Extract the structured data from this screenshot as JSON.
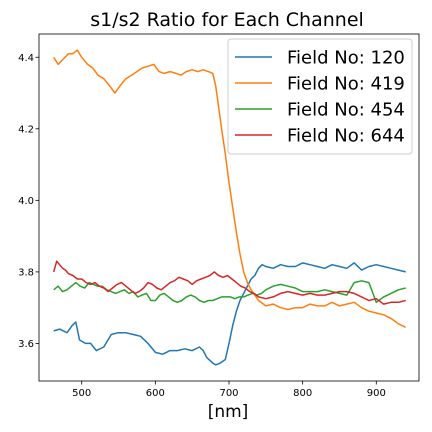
{
  "chart_data": {
    "type": "line",
    "title": "s1/s2 Ratio for Each Channel",
    "xlabel": "[nm]",
    "ylabel": "",
    "xlim": [
      442,
      958
    ],
    "ylim": [
      3.495,
      4.465
    ],
    "xticks": [
      500,
      600,
      700,
      800,
      900
    ],
    "yticks": [
      3.6,
      3.8,
      4.0,
      4.2,
      4.4
    ],
    "grid": false,
    "legend_position": "top-right",
    "series": [
      {
        "name": "Field No: 120",
        "color": "#1f77b4",
        "x": [
          462,
          470,
          480,
          487,
          492,
          497,
          505,
          512,
          520,
          530,
          540,
          550,
          560,
          570,
          580,
          590,
          600,
          610,
          620,
          630,
          640,
          650,
          660,
          665,
          670,
          678,
          682,
          688,
          695,
          700,
          705,
          710,
          715,
          720,
          725,
          730,
          735,
          740,
          745,
          750,
          760,
          770,
          780,
          790,
          800,
          810,
          820,
          830,
          840,
          850,
          860,
          870,
          880,
          890,
          900,
          910,
          920,
          930,
          940
        ],
        "y": [
          3.635,
          3.64,
          3.63,
          3.65,
          3.66,
          3.61,
          3.6,
          3.6,
          3.58,
          3.59,
          3.625,
          3.63,
          3.63,
          3.625,
          3.62,
          3.6,
          3.575,
          3.57,
          3.58,
          3.58,
          3.585,
          3.58,
          3.59,
          3.58,
          3.56,
          3.545,
          3.54,
          3.545,
          3.555,
          3.6,
          3.65,
          3.69,
          3.72,
          3.74,
          3.76,
          3.78,
          3.79,
          3.81,
          3.82,
          3.815,
          3.81,
          3.82,
          3.815,
          3.815,
          3.825,
          3.82,
          3.815,
          3.81,
          3.82,
          3.815,
          3.81,
          3.825,
          3.805,
          3.815,
          3.82,
          3.815,
          3.81,
          3.805,
          3.8
        ]
      },
      {
        "name": "Field No: 419",
        "color": "#ff7f0e",
        "x": [
          462,
          468,
          475,
          482,
          488,
          494,
          500,
          508,
          515,
          522,
          530,
          538,
          545,
          552,
          560,
          568,
          575,
          582,
          590,
          598,
          605,
          612,
          620,
          628,
          635,
          642,
          650,
          658,
          665,
          672,
          678,
          682,
          686,
          690,
          695,
          700,
          705,
          710,
          715,
          720,
          725,
          730,
          740,
          750,
          760,
          770,
          780,
          790,
          800,
          810,
          820,
          830,
          840,
          850,
          860,
          870,
          880,
          890,
          900,
          910,
          920,
          930,
          940
        ],
        "y": [
          4.4,
          4.38,
          4.395,
          4.41,
          4.41,
          4.42,
          4.4,
          4.38,
          4.37,
          4.35,
          4.34,
          4.32,
          4.3,
          4.32,
          4.34,
          4.35,
          4.36,
          4.37,
          4.375,
          4.38,
          4.36,
          4.355,
          4.36,
          4.355,
          4.35,
          4.36,
          4.365,
          4.36,
          4.365,
          4.36,
          4.355,
          4.32,
          4.26,
          4.2,
          4.13,
          4.05,
          3.98,
          3.91,
          3.85,
          3.8,
          3.77,
          3.75,
          3.72,
          3.705,
          3.71,
          3.7,
          3.695,
          3.7,
          3.7,
          3.71,
          3.705,
          3.705,
          3.715,
          3.705,
          3.71,
          3.715,
          3.7,
          3.69,
          3.685,
          3.68,
          3.67,
          3.655,
          3.645
        ]
      },
      {
        "name": "Field No: 454",
        "color": "#2ca02c",
        "x": [
          462,
          468,
          474,
          480,
          486,
          492,
          498,
          504,
          510,
          516,
          522,
          528,
          534,
          540,
          546,
          552,
          558,
          564,
          570,
          576,
          582,
          588,
          594,
          600,
          606,
          612,
          618,
          624,
          630,
          636,
          642,
          648,
          654,
          660,
          666,
          672,
          678,
          684,
          690,
          696,
          702,
          708,
          714,
          720,
          726,
          732,
          738,
          744,
          750,
          760,
          770,
          780,
          790,
          800,
          810,
          820,
          830,
          840,
          850,
          860,
          870,
          880,
          890,
          900,
          910,
          920,
          930,
          940
        ],
        "y": [
          3.75,
          3.76,
          3.745,
          3.75,
          3.76,
          3.77,
          3.76,
          3.755,
          3.77,
          3.765,
          3.76,
          3.76,
          3.75,
          3.745,
          3.74,
          3.745,
          3.75,
          3.74,
          3.745,
          3.73,
          3.735,
          3.74,
          3.72,
          3.72,
          3.735,
          3.74,
          3.73,
          3.72,
          3.715,
          3.72,
          3.73,
          3.735,
          3.73,
          3.72,
          3.715,
          3.72,
          3.72,
          3.725,
          3.73,
          3.73,
          3.73,
          3.725,
          3.73,
          3.73,
          3.735,
          3.74,
          3.735,
          3.74,
          3.75,
          3.76,
          3.765,
          3.76,
          3.755,
          3.745,
          3.745,
          3.745,
          3.75,
          3.745,
          3.74,
          3.735,
          3.77,
          3.775,
          3.77,
          3.715,
          3.73,
          3.74,
          3.75,
          3.755
        ]
      },
      {
        "name": "Field No: 644",
        "color": "#d62728",
        "x": [
          462,
          466,
          470,
          474,
          478,
          482,
          488,
          494,
          500,
          506,
          512,
          518,
          524,
          530,
          536,
          542,
          548,
          554,
          560,
          566,
          572,
          578,
          584,
          590,
          596,
          602,
          608,
          614,
          620,
          626,
          632,
          638,
          644,
          650,
          656,
          662,
          668,
          674,
          680,
          686,
          692,
          698,
          704,
          710,
          716,
          722,
          728,
          734,
          740,
          750,
          760,
          770,
          780,
          790,
          800,
          810,
          820,
          830,
          840,
          850,
          860,
          870,
          880,
          890,
          900,
          910,
          920,
          930,
          940
        ],
        "y": [
          3.8,
          3.83,
          3.82,
          3.81,
          3.805,
          3.795,
          3.79,
          3.78,
          3.78,
          3.77,
          3.765,
          3.77,
          3.76,
          3.755,
          3.745,
          3.755,
          3.765,
          3.77,
          3.76,
          3.75,
          3.74,
          3.745,
          3.755,
          3.77,
          3.765,
          3.755,
          3.75,
          3.76,
          3.77,
          3.775,
          3.785,
          3.78,
          3.775,
          3.765,
          3.775,
          3.78,
          3.785,
          3.79,
          3.8,
          3.79,
          3.785,
          3.79,
          3.78,
          3.77,
          3.76,
          3.755,
          3.745,
          3.74,
          3.73,
          3.725,
          3.73,
          3.74,
          3.745,
          3.74,
          3.735,
          3.74,
          3.735,
          3.735,
          3.74,
          3.745,
          3.745,
          3.74,
          3.73,
          3.72,
          3.725,
          3.71,
          3.715,
          3.715,
          3.72
        ]
      }
    ]
  }
}
